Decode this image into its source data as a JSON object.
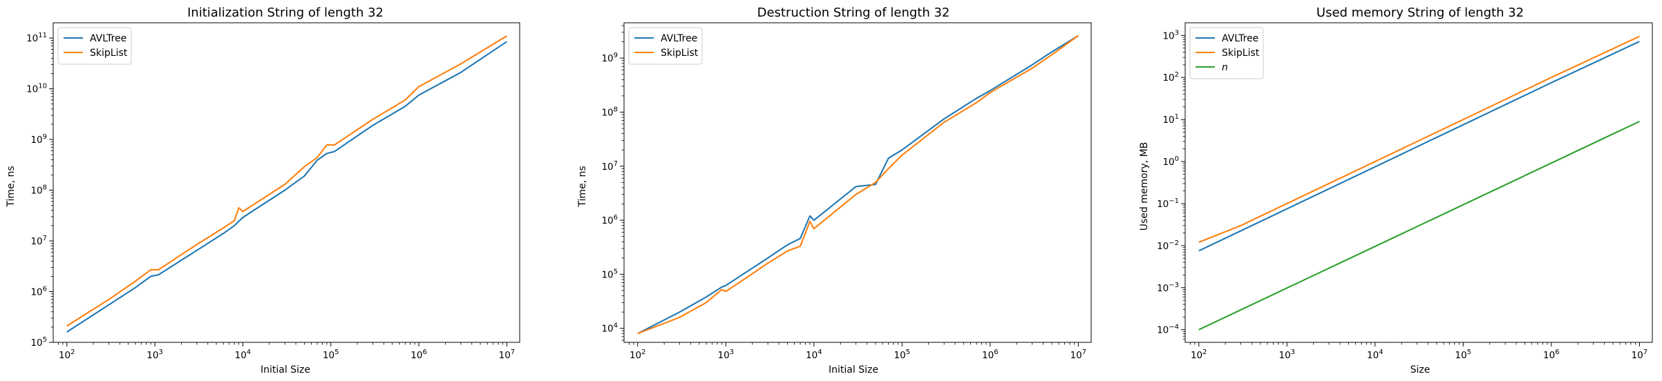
{
  "figure": {
    "background": "#ffffff"
  },
  "colors": {
    "AVLTree": "#1f77b4",
    "SkipList": "#ff7f0e",
    "n": "#2ca02c"
  },
  "chart_data": [
    {
      "type": "line",
      "title": "Initialization String of length 32",
      "xlabel": "Initial Size",
      "ylabel": "Time, ns",
      "xscale": "log",
      "yscale": "log",
      "xlim": [
        70,
        14000000
      ],
      "ylim": [
        100000,
        200000000000
      ],
      "xticks": [
        100,
        1000,
        10000,
        100000,
        1000000,
        10000000
      ],
      "xtick_labels": [
        [
          "10",
          "2"
        ],
        [
          "10",
          "3"
        ],
        [
          "10",
          "4"
        ],
        [
          "10",
          "5"
        ],
        [
          "10",
          "6"
        ],
        [
          "10",
          "7"
        ]
      ],
      "yticks": [
        100000,
        1000000,
        10000000,
        100000000,
        1000000000,
        10000000000,
        100000000000
      ],
      "ytick_labels": [
        [
          "10",
          "5"
        ],
        [
          "10",
          "6"
        ],
        [
          "10",
          "7"
        ],
        [
          "10",
          "8"
        ],
        [
          "10",
          "9"
        ],
        [
          "10",
          "10"
        ],
        [
          "10",
          "11"
        ]
      ],
      "legend": {
        "placement": "upper-left",
        "entries": [
          "AVLTree",
          "SkipList"
        ]
      },
      "series": [
        {
          "name": "AVLTree",
          "color": "#1f77b4",
          "x": [
            100,
            300,
            600,
            900,
            1100,
            3000,
            6000,
            8000,
            10000,
            30000,
            50000,
            70000,
            90000,
            110000,
            300000,
            700000,
            1000000,
            3000000,
            10000000
          ],
          "y": [
            160000,
            550000,
            1200000,
            2000000,
            2150000,
            6500000,
            14000000,
            20000000,
            29000000,
            100000000,
            190000000,
            390000000,
            530000000,
            580000000,
            1900000000,
            4500000000,
            7500000000,
            21000000000,
            85000000000
          ]
        },
        {
          "name": "SkipList",
          "color": "#ff7f0e",
          "x": [
            100,
            300,
            600,
            900,
            1100,
            3000,
            6000,
            8000,
            9000,
            10000,
            30000,
            50000,
            70000,
            90000,
            110000,
            300000,
            700000,
            1000000,
            3000000,
            10000000
          ],
          "y": [
            210000,
            700000,
            1600000,
            2700000,
            2700000,
            8500000,
            18000000,
            25000000,
            45000000,
            38000000,
            130000000,
            290000000,
            440000000,
            780000000,
            780000000,
            2500000000,
            6000000000,
            11000000000,
            31000000000,
            110000000000
          ]
        }
      ]
    },
    {
      "type": "line",
      "title": "Destruction String of length 32",
      "xlabel": "Initial Size",
      "ylabel": "Time, ns",
      "xscale": "log",
      "yscale": "log",
      "xlim": [
        70,
        14000000
      ],
      "ylim": [
        5500,
        4500000000
      ],
      "xticks": [
        100,
        1000,
        10000,
        100000,
        1000000,
        10000000
      ],
      "xtick_labels": [
        [
          "10",
          "2"
        ],
        [
          "10",
          "3"
        ],
        [
          "10",
          "4"
        ],
        [
          "10",
          "5"
        ],
        [
          "10",
          "6"
        ],
        [
          "10",
          "7"
        ]
      ],
      "yticks": [
        10000,
        100000,
        1000000,
        10000000,
        100000000,
        1000000000
      ],
      "ytick_labels": [
        [
          "10",
          "4"
        ],
        [
          "10",
          "5"
        ],
        [
          "10",
          "6"
        ],
        [
          "10",
          "7"
        ],
        [
          "10",
          "8"
        ],
        [
          "10",
          "9"
        ]
      ],
      "legend": {
        "placement": "upper-left",
        "entries": [
          "AVLTree",
          "SkipList"
        ]
      },
      "series": [
        {
          "name": "AVLTree",
          "color": "#1f77b4",
          "x": [
            100,
            300,
            600,
            900,
            1000,
            3000,
            5000,
            7000,
            9000,
            10000,
            30000,
            50000,
            70000,
            100000,
            300000,
            700000,
            1000000,
            3000000,
            5000000,
            10000000
          ],
          "y": [
            8000,
            20000,
            38000,
            58000,
            62000,
            200000,
            350000,
            460000,
            1200000,
            1000000,
            4200000,
            4600000,
            14000000,
            20000000,
            75000000,
            180000000,
            250000000,
            750000000,
            1300000000,
            2600000000
          ]
        },
        {
          "name": "SkipList",
          "color": "#ff7f0e",
          "x": [
            100,
            300,
            600,
            900,
            1000,
            3000,
            5000,
            7000,
            9000,
            10000,
            30000,
            50000,
            70000,
            100000,
            300000,
            700000,
            1000000,
            3000000,
            5000000,
            10000000
          ],
          "y": [
            8000,
            16000,
            30000,
            52000,
            48000,
            160000,
            270000,
            330000,
            950000,
            700000,
            3000000,
            5000000,
            9000000,
            16000000,
            65000000,
            150000000,
            230000000,
            650000000,
            1150000000,
            2600000000
          ]
        }
      ]
    },
    {
      "type": "line",
      "title": "Used memory String of length 32",
      "xlabel": "Size",
      "ylabel": "Used memory, MB",
      "xscale": "log",
      "yscale": "log",
      "xlim": [
        70,
        14000000
      ],
      "ylim": [
        5e-05,
        2000
      ],
      "xticks": [
        100,
        1000,
        10000,
        100000,
        1000000,
        10000000
      ],
      "xtick_labels": [
        [
          "10",
          "2"
        ],
        [
          "10",
          "3"
        ],
        [
          "10",
          "4"
        ],
        [
          "10",
          "5"
        ],
        [
          "10",
          "6"
        ],
        [
          "10",
          "7"
        ]
      ],
      "yticks": [
        0.0001,
        0.001,
        0.01,
        0.1,
        1,
        10,
        100,
        1000
      ],
      "ytick_labels": [
        [
          "10",
          "−4"
        ],
        [
          "10",
          "−3"
        ],
        [
          "10",
          "−2"
        ],
        [
          "10",
          "−1"
        ],
        [
          "10",
          "0"
        ],
        [
          "10",
          "1"
        ],
        [
          "10",
          "2"
        ],
        [
          "10",
          "3"
        ]
      ],
      "legend": {
        "placement": "upper-left",
        "entries": [
          "AVLTree",
          "SkipList",
          "n"
        ]
      },
      "series": [
        {
          "name": "AVLTree",
          "color": "#1f77b4",
          "x": [
            100,
            1000,
            10000,
            100000,
            1000000,
            10000000
          ],
          "y": [
            0.0075,
            0.075,
            0.75,
            7.5,
            75,
            720
          ]
        },
        {
          "name": "SkipList",
          "color": "#ff7f0e",
          "x": [
            100,
            300,
            900,
            1000,
            10000,
            100000,
            1000000,
            10000000
          ],
          "y": [
            0.012,
            0.03,
            0.09,
            0.1,
            1.0,
            10,
            100,
            950
          ]
        },
        {
          "name": "n",
          "color": "#2ca02c",
          "x": [
            100,
            10000000
          ],
          "y": [
            0.0001,
            9
          ]
        }
      ]
    }
  ]
}
